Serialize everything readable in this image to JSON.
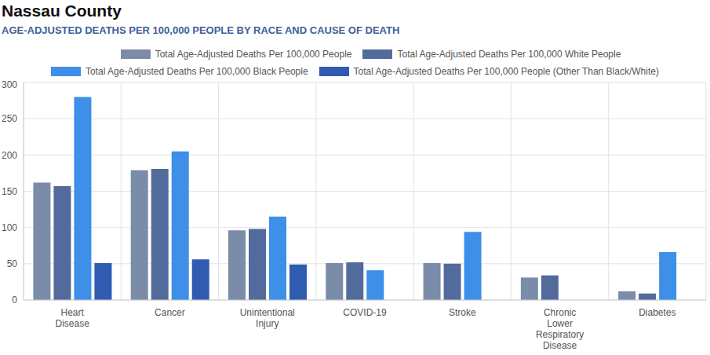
{
  "chart_data": {
    "type": "bar",
    "title": "Nassau County",
    "subtitle": "AGE-ADJUSTED DEATHS PER 100,000 PEOPLE BY RACE AND CAUSE OF DEATH",
    "categories": [
      "Heart Disease",
      "Cancer",
      "Unintentional Injury",
      "COVID-19",
      "Stroke",
      "Chronic Lower Respiratory Disease",
      "Diabetes"
    ],
    "series": [
      {
        "name": "Total Age-Adjusted Deaths Per 100,000 People",
        "color": "#7a8ca8",
        "values": [
          162,
          179,
          96,
          51,
          51,
          31,
          12
        ]
      },
      {
        "name": "Total Age-Adjusted Deaths Per 100,000 White People",
        "color": "#536b9c",
        "values": [
          157,
          181,
          98,
          52,
          50,
          34,
          9
        ]
      },
      {
        "name": "Total Age-Adjusted Deaths Per 100,000 Black People",
        "color": "#3d8fe8",
        "values": [
          280,
          205,
          115,
          41,
          94,
          null,
          66
        ]
      },
      {
        "name": "Total Age-Adjusted Deaths Per 100,000 People (Other Than Black/White)",
        "color": "#2f5bb0",
        "values": [
          51,
          56,
          49,
          null,
          null,
          null,
          null
        ]
      }
    ],
    "ylim": [
      0,
      300
    ],
    "yticks": [
      0,
      50,
      100,
      150,
      200,
      250,
      300
    ],
    "grid": true,
    "legend": "top"
  }
}
